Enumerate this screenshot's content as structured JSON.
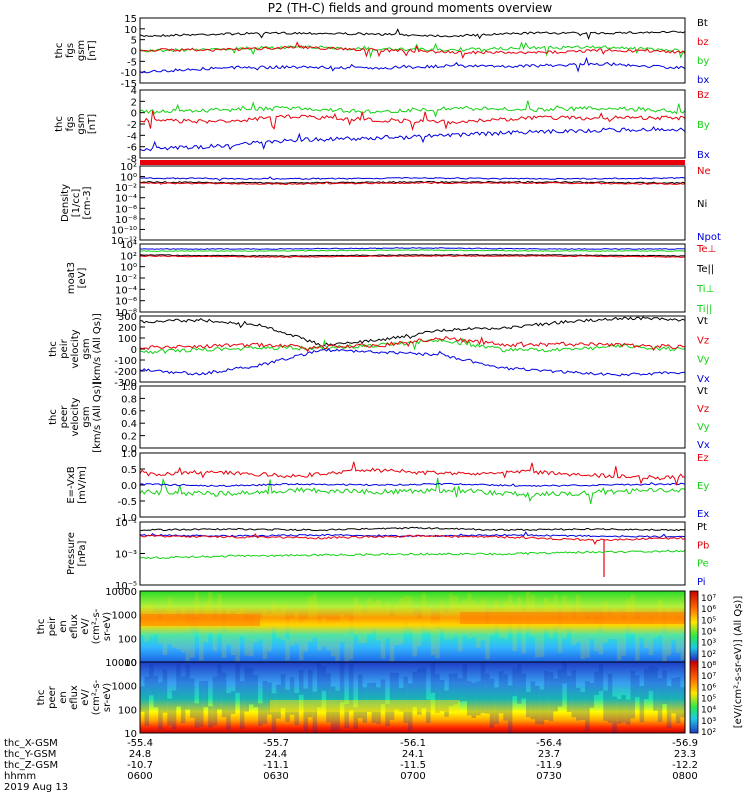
{
  "title": "P2 (TH-C) fields and ground moments overview",
  "colors": {
    "black": "#000000",
    "red": "#e8000b",
    "green": "#14d214",
    "blue": "#0000e0",
    "darkred": "#b40000"
  },
  "panels": [
    {
      "id": "fgs",
      "ylabel": [
        "thc",
        "fgs",
        "gsm",
        "[nT]"
      ],
      "ticks": [
        "15",
        "10",
        "5",
        "0",
        "-5",
        "-10",
        "-15"
      ],
      "legend": [
        {
          "text": "Bt",
          "color": "black"
        },
        {
          "text": "bz",
          "color": "red"
        },
        {
          "text": "by",
          "color": "green"
        },
        {
          "text": "bx",
          "color": "blue"
        }
      ]
    },
    {
      "id": "fgs2",
      "ylabel": [
        "thc",
        "fgs",
        "gsm",
        "[nT]"
      ],
      "ticks": [
        "4",
        "2",
        "0",
        "-2",
        "-4",
        "-6",
        "-8"
      ],
      "legend": [
        {
          "text": "Bz",
          "color": "red"
        },
        {
          "text": "By",
          "color": "green"
        },
        {
          "text": "Bx",
          "color": "blue"
        }
      ]
    },
    {
      "id": "density",
      "ylabel": [
        "Density",
        "[1/cc]",
        "[cm-3]"
      ],
      "ticks": [
        "10²",
        "10⁰",
        "10⁻²",
        "10⁻⁴",
        "10⁻⁶",
        "10⁻⁸",
        "10⁻¹⁰",
        "10⁻¹²"
      ],
      "legend": [
        {
          "text": "Ne",
          "color": "red"
        },
        {
          "text": "Ni",
          "color": "black"
        },
        {
          "text": "Npot",
          "color": "blue"
        }
      ]
    },
    {
      "id": "temp",
      "ylabel": [
        "moat3",
        "[eV]"
      ],
      "ticks": [
        "10⁴",
        "10²",
        "10⁰",
        "10⁻²",
        "10⁻⁴",
        "10⁻⁶",
        "10⁻⁸"
      ],
      "legend": [
        {
          "text": "Te⊥",
          "color": "red"
        },
        {
          "text": "Te||",
          "color": "black"
        },
        {
          "text": "Ti⊥",
          "color": "green"
        },
        {
          "text": "Ti||",
          "color": "green"
        }
      ]
    },
    {
      "id": "peir_vel",
      "ylabel": [
        "thc",
        "peir",
        "velocity",
        "gsm",
        "[km/s (All Qs)]"
      ],
      "ticks": [
        "300",
        "200",
        "100",
        "0",
        "-100",
        "-200",
        "-300"
      ],
      "legend": [
        {
          "text": "Vt",
          "color": "black"
        },
        {
          "text": "Vz",
          "color": "red"
        },
        {
          "text": "Vy",
          "color": "green"
        },
        {
          "text": "Vx",
          "color": "blue"
        }
      ]
    },
    {
      "id": "peer_vel",
      "ylabel": [
        "thc",
        "peer",
        "velocity",
        "gsm",
        "[km/s (All Qs)]"
      ],
      "ticks": [
        "1.0",
        "0.8",
        "0.6",
        "0.4",
        "0.2",
        "0.0"
      ],
      "legend": [
        {
          "text": "Vt",
          "color": "black"
        },
        {
          "text": "Vz",
          "color": "red"
        },
        {
          "text": "Vy",
          "color": "green"
        },
        {
          "text": "Vx",
          "color": "blue"
        }
      ]
    },
    {
      "id": "efield",
      "ylabel": [
        "E=-VxB",
        "[mV/m]"
      ],
      "ticks": [
        "1.0",
        "0.5",
        "0.0",
        "-0.5",
        "-1.0"
      ],
      "legend": [
        {
          "text": "Ez",
          "color": "red"
        },
        {
          "text": "Ey",
          "color": "green"
        },
        {
          "text": "Ex",
          "color": "blue"
        }
      ]
    },
    {
      "id": "pressure",
      "ylabel": [
        "Pressure",
        "[nPa]"
      ],
      "ticks": [
        "10⁻¹",
        "10⁻³",
        "10⁻⁵"
      ],
      "legend": [
        {
          "text": "Pt",
          "color": "black"
        },
        {
          "text": "Pb",
          "color": "red"
        },
        {
          "text": "Pe",
          "color": "green"
        },
        {
          "text": "Pi",
          "color": "blue"
        }
      ]
    },
    {
      "id": "peir_spec",
      "ylabel": [
        "thc",
        "peir",
        "en",
        "eflux",
        "eV/",
        "(cm²-s-",
        "sr-eV)"
      ],
      "ticks": [
        "10000",
        "1000",
        "100",
        "10"
      ]
    },
    {
      "id": "peer_spec",
      "ylabel": [
        "thc",
        "peer",
        "en",
        "eflux",
        "eV/",
        "(cm²-s-",
        "sr-eV)"
      ],
      "ticks": [
        "10000",
        "1000",
        "100",
        "10"
      ]
    }
  ],
  "colorbar": {
    "ticks": [
      "10⁷",
      "10⁶",
      "10⁵",
      "10⁴",
      "10³",
      "10²",
      "10⁸",
      "10⁷",
      "10⁶",
      "10⁵",
      "10⁴",
      "10³",
      "10²"
    ],
    "label": "[eV/(cm²-s-sr-eV)] (All Qs)]"
  },
  "xaxis": {
    "rows": [
      {
        "label": "thc_X-GSM",
        "values": [
          "-55.4",
          "-55.7",
          "-56.1",
          "-56.4",
          "-56.9"
        ]
      },
      {
        "label": "thc_Y-GSM",
        "values": [
          "24.8",
          "24.4",
          "24.1",
          "23.7",
          "23.3"
        ]
      },
      {
        "label": "thc_Z-GSM",
        "values": [
          "-10.7",
          "-11.1",
          "-11.5",
          "-11.9",
          "-12.2"
        ]
      },
      {
        "label": "hhmm",
        "values": [
          "0600",
          "0630",
          "0700",
          "0730",
          "0800"
        ]
      }
    ],
    "date": "2019 Aug 13"
  },
  "chart_data": [
    {
      "type": "line",
      "title": "P2 (TH-C) fields and ground moments overview",
      "x": [
        "0600",
        "0630",
        "0700",
        "0730",
        "0800"
      ],
      "ylabel": "thc fgs gsm [nT]",
      "ylim": [
        -15,
        15
      ],
      "series": [
        {
          "name": "Bt",
          "values": [
            8,
            9,
            8,
            7,
            7
          ]
        },
        {
          "name": "bz",
          "values": [
            2,
            3,
            1,
            2,
            1
          ]
        },
        {
          "name": "by",
          "values": [
            1,
            1,
            3,
            2,
            2
          ]
        },
        {
          "name": "bx",
          "values": [
            -8,
            -5,
            -6,
            -5,
            -4
          ]
        }
      ]
    },
    {
      "type": "line",
      "x": [
        "0600",
        "0630",
        "0700",
        "0730",
        "0800"
      ],
      "ylabel": "thc fgs gsm [nT]",
      "ylim": [
        -8,
        4
      ],
      "series": [
        {
          "name": "Bz",
          "values": [
            1,
            0,
            1,
            0,
            1
          ]
        },
        {
          "name": "By",
          "values": [
            2,
            2,
            2,
            1,
            1
          ]
        },
        {
          "name": "Bx",
          "values": [
            -7,
            -6,
            -5,
            -4,
            -3
          ]
        }
      ]
    },
    {
      "type": "line",
      "x": [
        "0600",
        "0630",
        "0700",
        "0730",
        "0800"
      ],
      "ylabel": "Density [1/cc] [cm-3]",
      "ylim": [
        1e-12,
        100
      ],
      "series": [
        {
          "name": "Ne",
          "values": [
            0.1,
            0.1,
            0.1,
            0.1,
            0.1
          ]
        },
        {
          "name": "Ni",
          "values": [
            0.1,
            0.1,
            0.1,
            0.1,
            0.1
          ]
        },
        {
          "name": "Npot",
          "values": [
            0.3,
            0.3,
            0.3,
            0.3,
            0.3
          ]
        }
      ]
    },
    {
      "type": "line",
      "x": [
        "0600",
        "0630",
        "0700",
        "0730",
        "0800"
      ],
      "ylabel": "moat3 [eV]",
      "ylim": [
        1e-08,
        10000
      ],
      "series": [
        {
          "name": "Te⊥",
          "values": [
            100,
            100,
            100,
            100,
            100
          ]
        },
        {
          "name": "Te||",
          "values": [
            100,
            100,
            100,
            100,
            100
          ]
        },
        {
          "name": "Ti⊥",
          "values": [
            1000,
            1000,
            1000,
            1000,
            1000
          ]
        },
        {
          "name": "Ti||",
          "values": [
            1000,
            1000,
            1000,
            1000,
            1000
          ]
        }
      ]
    },
    {
      "type": "line",
      "x": [
        "0600",
        "0630",
        "0700",
        "0730",
        "0800"
      ],
      "ylabel": "thc peir velocity gsm [km/s (All Qs)]",
      "ylim": [
        -300,
        300
      ],
      "series": [
        {
          "name": "Vt",
          "values": [
            300,
            50,
            0,
            250,
            250
          ]
        },
        {
          "name": "Vz",
          "values": [
            -50,
            0,
            0,
            -30,
            -50
          ]
        },
        {
          "name": "Vy",
          "values": [
            -50,
            -20,
            -30,
            -50,
            -40
          ]
        },
        {
          "name": "Vx",
          "values": [
            -270,
            -50,
            0,
            -230,
            -230
          ]
        }
      ]
    },
    {
      "type": "line",
      "x": [
        "0600",
        "0630",
        "0700",
        "0730",
        "0800"
      ],
      "ylabel": "thc peer velocity gsm [km/s (All Qs)]",
      "ylim": [
        0,
        1
      ],
      "series": []
    },
    {
      "type": "line",
      "x": [
        "0600",
        "0630",
        "0700",
        "0730",
        "0800"
      ],
      "ylabel": "E=-VxB [mV/m]",
      "ylim": [
        -1,
        1
      ],
      "series": [
        {
          "name": "Ez",
          "values": [
            0.3,
            0.3,
            0.2,
            0.3,
            0.3
          ]
        },
        {
          "name": "Ey",
          "values": [
            -0.1,
            -0.1,
            0.0,
            -0.1,
            0.0
          ]
        },
        {
          "name": "Ex",
          "values": [
            0.0,
            0.0,
            0.0,
            0.0,
            0.0
          ]
        }
      ]
    },
    {
      "type": "line",
      "x": [
        "0600",
        "0630",
        "0700",
        "0730",
        "0800"
      ],
      "ylabel": "Pressure [nPa]",
      "ylim": [
        1e-06,
        1
      ],
      "series": [
        {
          "name": "Pt",
          "values": [
            0.2,
            0.2,
            0.2,
            0.2,
            0.2
          ]
        },
        {
          "name": "Pb",
          "values": [
            0.1,
            0.1,
            0.1,
            0.1,
            0.1
          ]
        },
        {
          "name": "Pe",
          "values": [
            0.001,
            0.001,
            0.001,
            0.001,
            0.001
          ]
        },
        {
          "name": "Pi",
          "values": [
            0.1,
            0.1,
            0.1,
            0.1,
            0.1
          ]
        }
      ]
    },
    {
      "type": "heatmap",
      "x": [
        "0600",
        "0630",
        "0700",
        "0730",
        "0800"
      ],
      "ylabel": "thc peir en eflux eV/(cm²-s-sr-eV)",
      "yticks": [
        "10000",
        "1000",
        "100",
        "10"
      ],
      "colorbar_ticks": [
        "10⁷",
        "10⁶",
        "10⁵",
        "10⁴",
        "10³",
        "10²"
      ]
    },
    {
      "type": "heatmap",
      "x": [
        "0600",
        "0630",
        "0700",
        "0730",
        "0800"
      ],
      "ylabel": "thc peer en eflux eV/(cm²-s-sr-eV)",
      "yticks": [
        "10000",
        "1000",
        "100",
        "10"
      ],
      "colorbar_ticks": [
        "10⁸",
        "10⁷",
        "10⁶",
        "10⁵",
        "10⁴",
        "10³",
        "10²"
      ]
    }
  ]
}
